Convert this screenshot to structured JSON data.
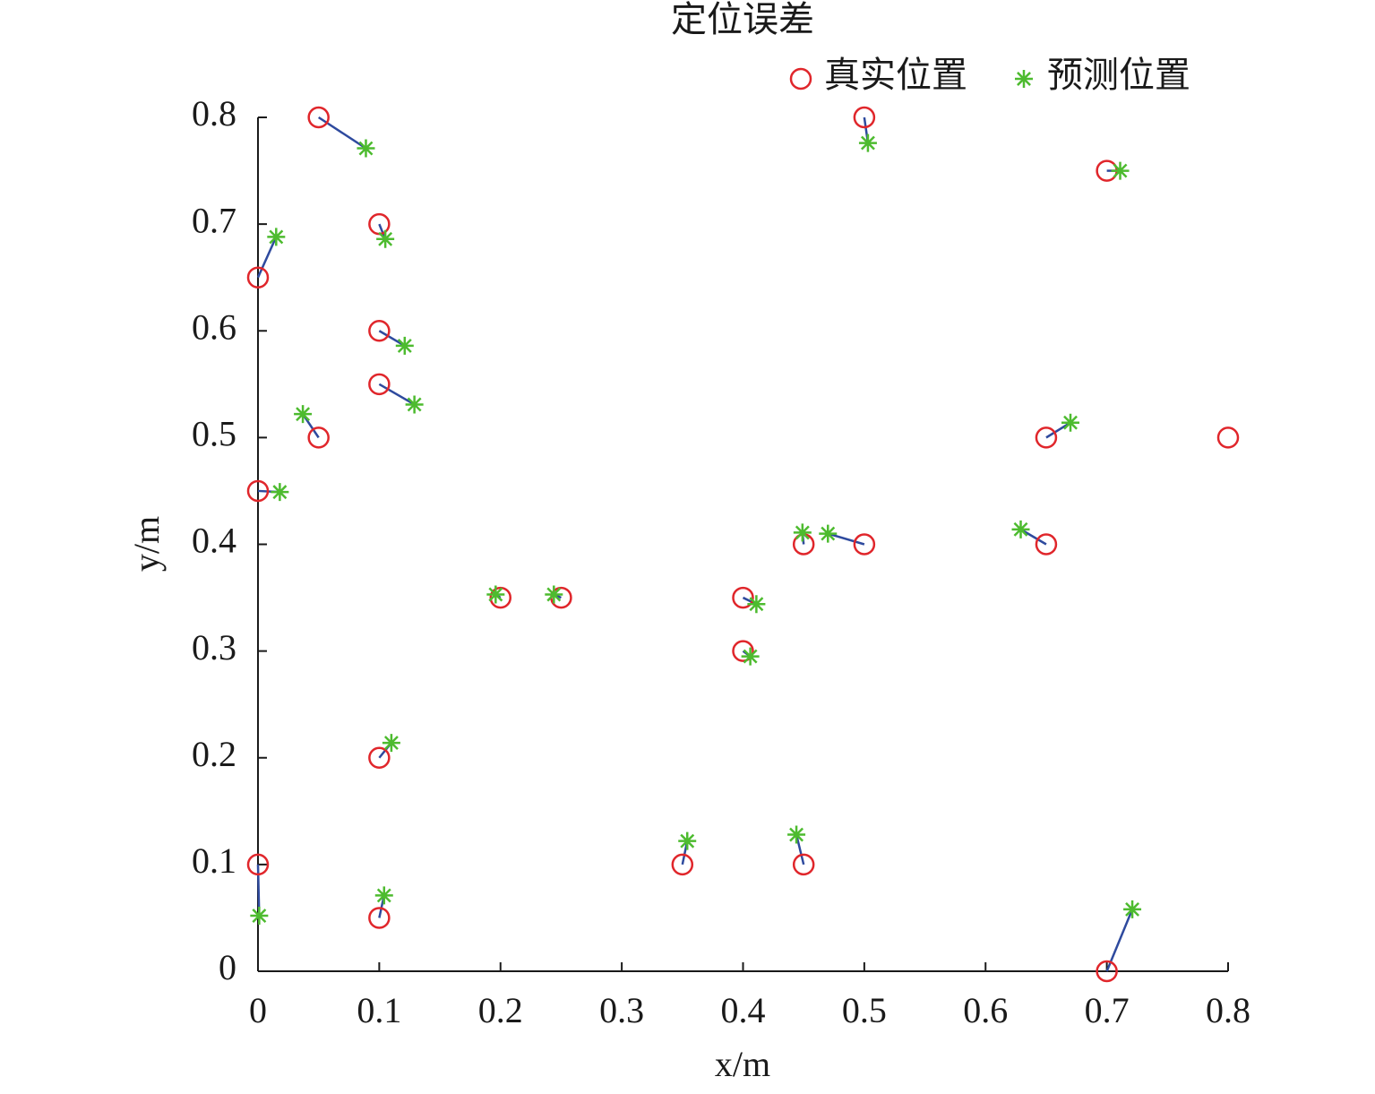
{
  "chart_data": {
    "type": "scatter",
    "title": "定位误差",
    "x_label": "x/m",
    "y_label": "y/m",
    "xlim": [
      0,
      0.8
    ],
    "ylim": [
      0,
      0.8
    ],
    "xticks": [
      0,
      0.1,
      0.2,
      0.3,
      0.4,
      0.5,
      0.6,
      0.7,
      0.8
    ],
    "yticks": [
      0,
      0.1,
      0.2,
      0.3,
      0.4,
      0.5,
      0.6,
      0.7,
      0.8
    ],
    "connector_color": "#2e4a9e",
    "legend": "top-right",
    "series": [
      {
        "name": "真实位置",
        "color": "#e0262b",
        "marker": "circle",
        "x": [
          0.05,
          0.5,
          0.7,
          0.1,
          0,
          0.1,
          0.1,
          0.05,
          0.65,
          0.8,
          0,
          0.45,
          0.5,
          0.65,
          0.2,
          0.25,
          0.4,
          0.4,
          0.1,
          0,
          0.35,
          0.45,
          0.1,
          0.7
        ],
        "y": [
          0.8,
          0.8,
          0.75,
          0.7,
          0.65,
          0.6,
          0.55,
          0.5,
          0.5,
          0.5,
          0.45,
          0.4,
          0.4,
          0.4,
          0.35,
          0.35,
          0.35,
          0.3,
          0.2,
          0.1,
          0.1,
          0.1,
          0.05,
          0
        ]
      },
      {
        "name": "预测位置",
        "color": "#4dbb2f",
        "marker": "asterisk",
        "x": [
          0.089,
          0.503,
          0.711,
          0.105,
          0.015,
          0.121,
          0.129,
          0.037,
          0.67,
          null,
          0.018,
          0.449,
          0.47,
          0.629,
          0.196,
          0.244,
          0.411,
          0.406,
          0.11,
          0.001,
          0.354,
          0.444,
          0.104,
          0.721
        ],
        "y": [
          0.771,
          0.776,
          0.75,
          0.686,
          0.688,
          0.586,
          0.531,
          0.522,
          0.514,
          null,
          0.449,
          0.411,
          0.41,
          0.414,
          0.353,
          0.353,
          0.344,
          0.295,
          0.214,
          0.052,
          0.122,
          0.128,
          0.071,
          0.058
        ]
      }
    ]
  }
}
